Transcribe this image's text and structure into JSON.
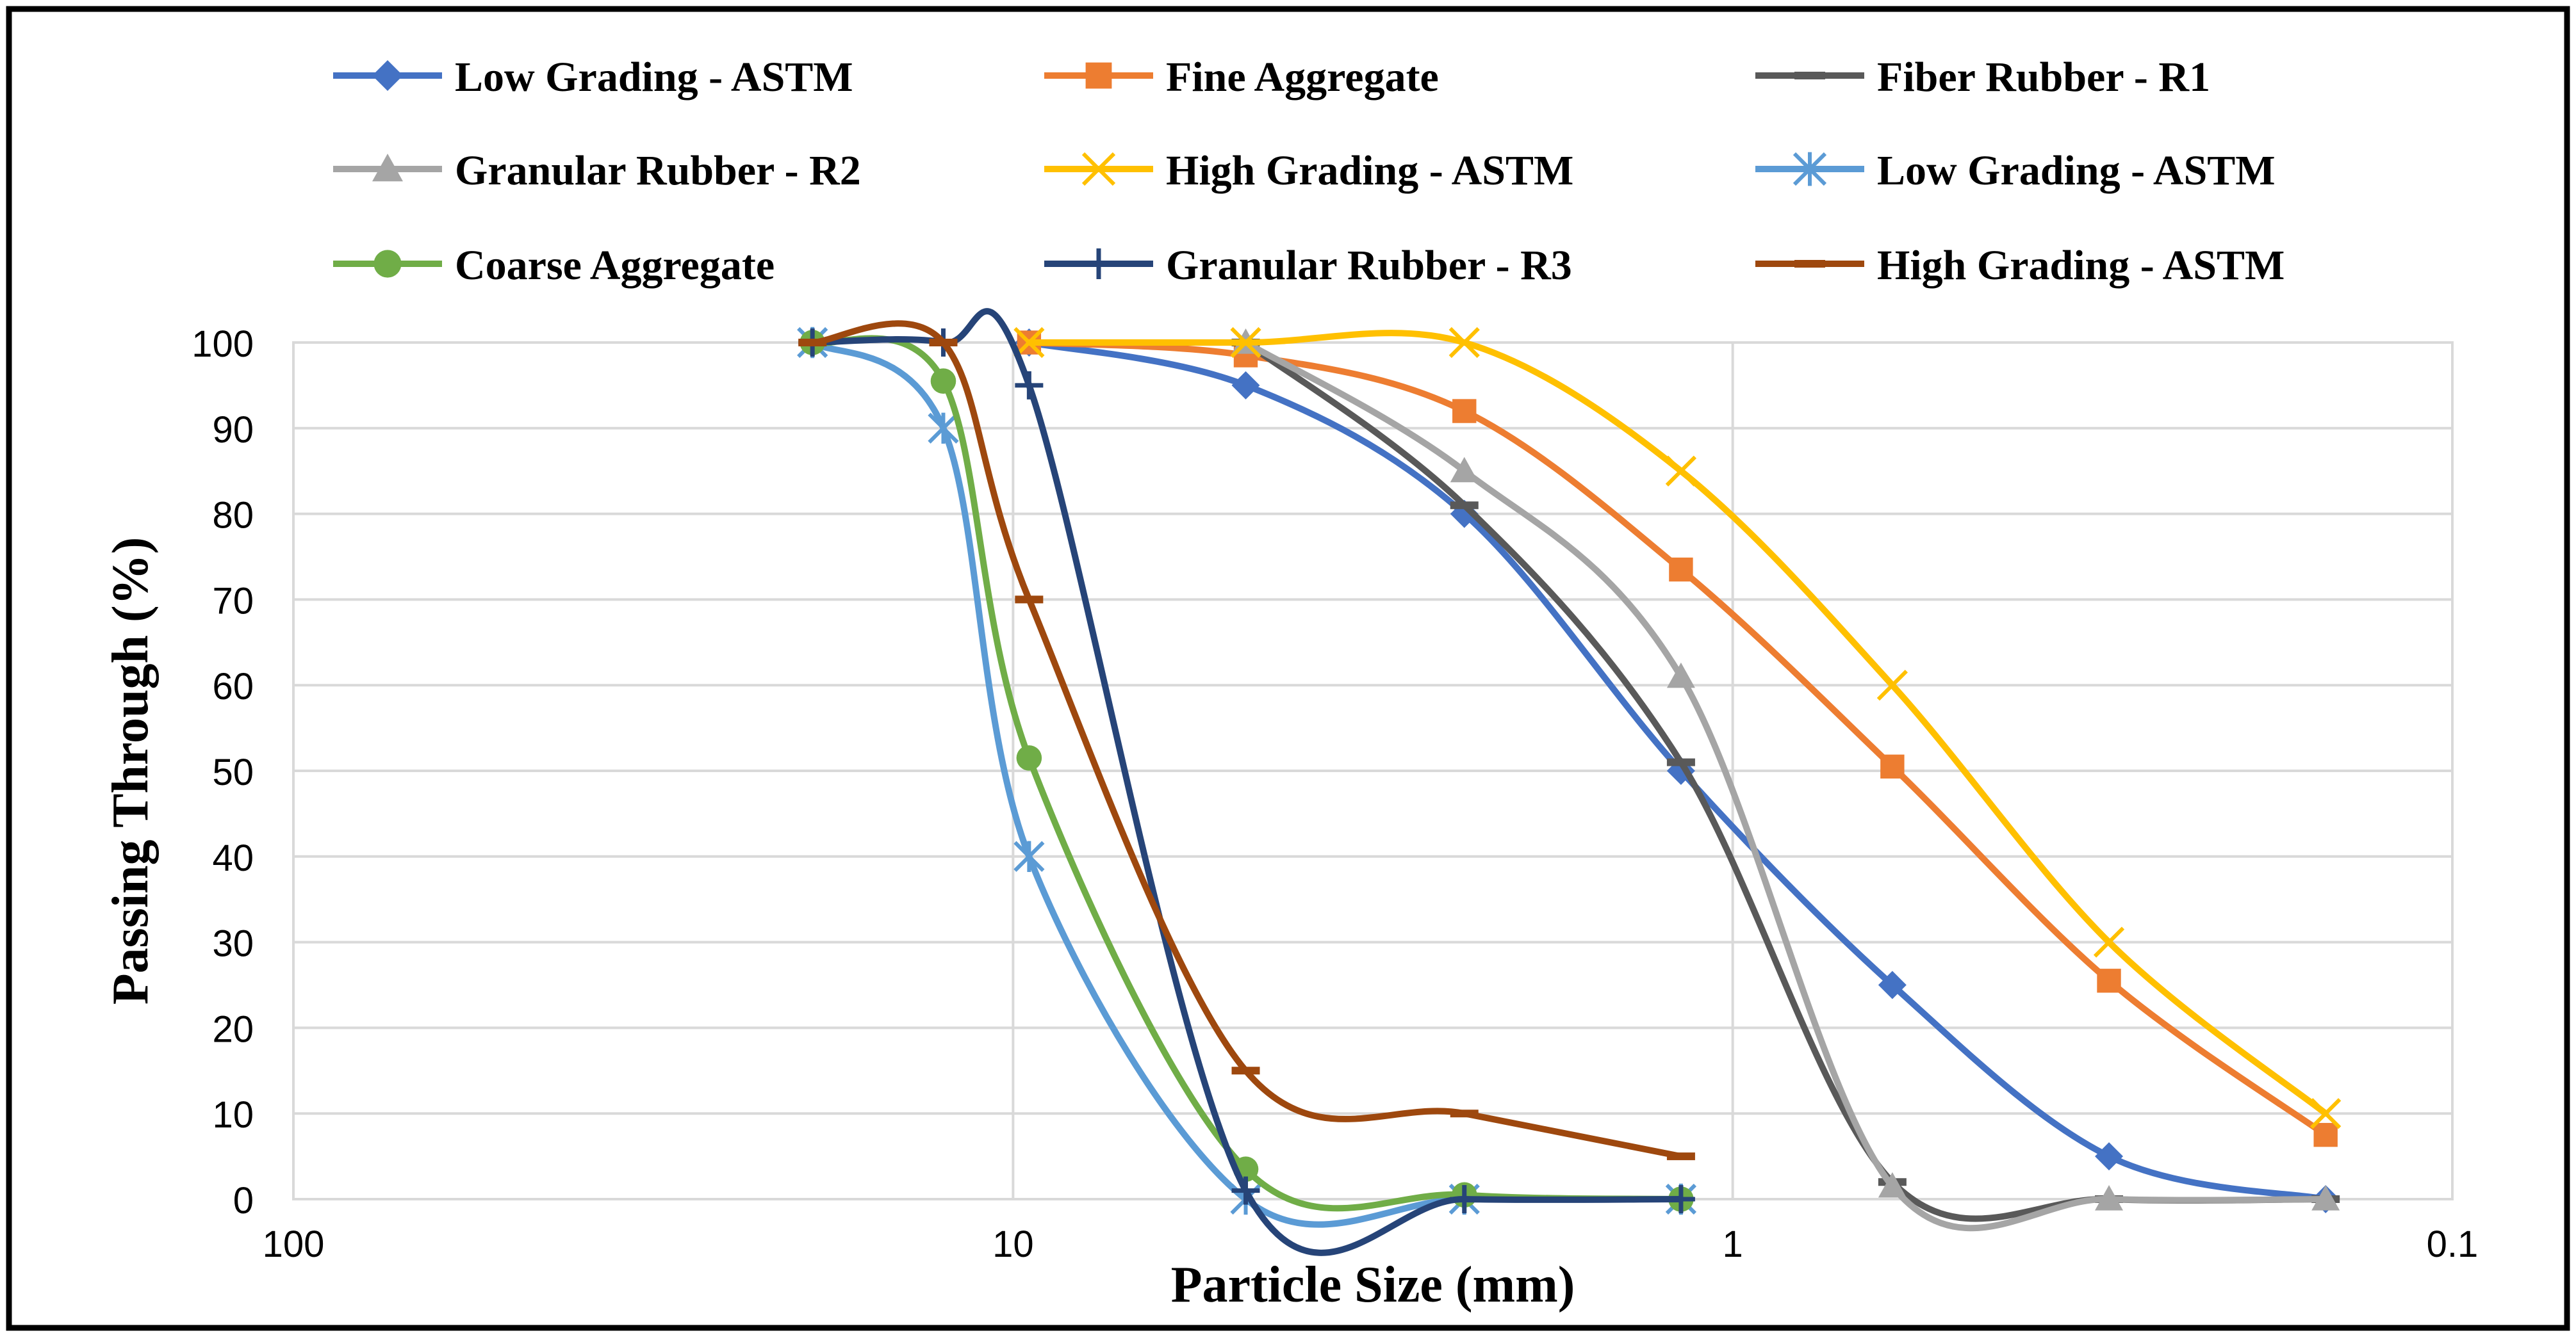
{
  "chart_data": {
    "type": "line",
    "title": "",
    "xlabel": "Particle Size (mm)",
    "ylabel": "Passing Through (%)",
    "xscale": "log",
    "x_reversed": true,
    "xlim": [
      100,
      0.1
    ],
    "ylim": [
      0,
      100
    ],
    "x_ticks": [
      100,
      10,
      1,
      0.1
    ],
    "x_tick_labels": [
      "100",
      "10",
      "1",
      "0.1"
    ],
    "y_ticks": [
      0,
      10,
      20,
      30,
      40,
      50,
      60,
      70,
      80,
      90,
      100
    ],
    "y_tick_labels": [
      "0",
      "10",
      "20",
      "30",
      "40",
      "50",
      "60",
      "70",
      "80",
      "90",
      "100"
    ],
    "grid": true,
    "legend_position": "top",
    "series": [
      {
        "name": "Low Grading - ASTM",
        "color": "#4472C4",
        "marker": "diamond",
        "x": [
          9.5,
          4.75,
          2.36,
          1.18,
          0.6,
          0.3,
          0.15
        ],
        "values": [
          100,
          95,
          80,
          50,
          25,
          5,
          0
        ]
      },
      {
        "name": "Fine Aggregate",
        "color": "#ED7D31",
        "marker": "square",
        "x": [
          9.5,
          4.75,
          2.36,
          1.18,
          0.6,
          0.3,
          0.15
        ],
        "values": [
          100,
          98.5,
          92,
          73.5,
          50.5,
          25.5,
          7.5
        ]
      },
      {
        "name": "Fiber Rubber - R1",
        "color": "#595959",
        "marker": "dash",
        "x": [
          4.75,
          2.36,
          1.18,
          0.6,
          0.3,
          0.15
        ],
        "values": [
          100,
          81,
          51,
          2,
          0,
          0
        ]
      },
      {
        "name": "Granular Rubber - R2",
        "color": "#A5A5A5",
        "marker": "triangle",
        "x": [
          4.75,
          2.36,
          1.18,
          0.6,
          0.3,
          0.15
        ],
        "values": [
          100,
          85,
          61,
          1.5,
          0,
          0
        ]
      },
      {
        "name": "High Grading - ASTM",
        "color": "#FFC000",
        "marker": "x",
        "x": [
          9.5,
          4.75,
          2.36,
          1.18,
          0.6,
          0.3,
          0.15
        ],
        "values": [
          100,
          100,
          100,
          85,
          60,
          30,
          10
        ]
      },
      {
        "name": "Low Grading - ASTM",
        "color": "#5B9BD5",
        "marker": "star",
        "x": [
          19,
          12.5,
          9.5,
          4.75,
          2.36,
          1.18
        ],
        "values": [
          100,
          90,
          40,
          0,
          0,
          0
        ]
      },
      {
        "name": "Coarse Aggregate",
        "color": "#70AD47",
        "marker": "circle",
        "x": [
          19,
          12.5,
          9.5,
          4.75,
          2.36,
          1.18
        ],
        "values": [
          100,
          95.5,
          51.5,
          3.5,
          0.5,
          0
        ]
      },
      {
        "name": "Granular Rubber - R3",
        "color": "#264478",
        "marker": "plus",
        "x": [
          19,
          12.5,
          9.5,
          4.75,
          2.36,
          1.18
        ],
        "values": [
          100,
          100,
          95,
          1,
          0,
          0
        ]
      },
      {
        "name": "High Grading - ASTM",
        "color": "#9E480E",
        "marker": "dash",
        "x": [
          19,
          12.5,
          9.5,
          4.75,
          2.36,
          1.18
        ],
        "values": [
          100,
          100,
          70,
          15,
          10,
          5
        ]
      }
    ]
  }
}
